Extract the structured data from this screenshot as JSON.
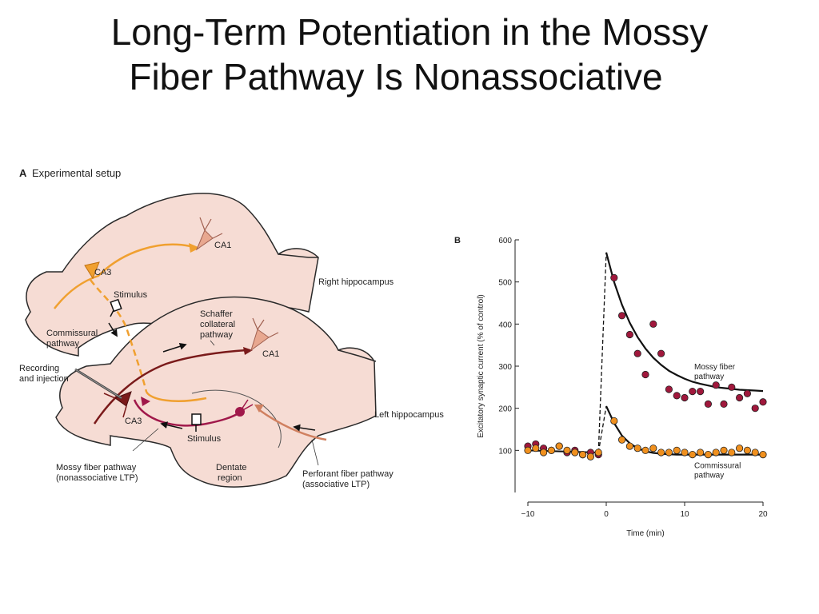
{
  "slide": {
    "title_line_1": "Long-Term Potentiation in the Mossy",
    "title_line_2": "Fiber Pathway Is Nonassociative"
  },
  "panel_a": {
    "letter": "A",
    "heading": "Experimental setup",
    "labels": {
      "ca1_right": "CA1",
      "ca3_right": "CA3",
      "stimulus_top": "Stimulus",
      "right_hippocampus": "Right hippocampus",
      "commissural_1": "Commissural",
      "commissural_2": "pathway",
      "schaffer_1": "Schaffer",
      "schaffer_2": "collateral",
      "schaffer_3": "pathway",
      "ca1_left": "CA1",
      "recording_1": "Recording",
      "recording_2": "and injection",
      "ca3_left": "CA3",
      "stimulus_bottom": "Stimulus",
      "left_hippocampus": "Left hippocampus",
      "mossy_1": "Mossy fiber pathway",
      "mossy_2": "(nonassociative LTP)",
      "dentate_1": "Dentate",
      "dentate_2": "region",
      "perforant_1": "Perforant fiber pathway",
      "perforant_2": "(associative LTP)"
    },
    "colors": {
      "tissue": "#f6dcd4",
      "outline": "#2a2a2a",
      "commissural": "#f0a030",
      "schaffer": "#7a1a1a",
      "mossy": "#a0184a",
      "perforant": "#d08060",
      "neuron_ca1": "#e8a890"
    }
  },
  "chart_data": {
    "type": "scatter",
    "panel_letter": "B",
    "xlabel": "Time (min)",
    "ylabel": "Excitatory synaptic current (% of control)",
    "xlim": [
      -10,
      20
    ],
    "ylim": [
      0,
      600
    ],
    "x_ticks": [
      -10,
      0,
      10,
      20
    ],
    "x_tick_labels": [
      "−10",
      "0",
      "10",
      "20"
    ],
    "y_ticks": [
      100,
      200,
      300,
      400,
      500,
      600
    ],
    "series": [
      {
        "name": "Mossy fiber pathway",
        "label_line_1": "Mossy fiber",
        "label_line_2": "pathway",
        "color": "#a0183c",
        "x": [
          -10,
          -9,
          -8,
          -7,
          -6,
          -5,
          -4,
          -3,
          -2,
          -1,
          1,
          2,
          3,
          4,
          5,
          6,
          7,
          8,
          9,
          10,
          11,
          12,
          13,
          14,
          15,
          16,
          17,
          18,
          19,
          20
        ],
        "y": [
          110,
          115,
          105,
          100,
          110,
          95,
          100,
          90,
          95,
          90,
          510,
          420,
          375,
          330,
          280,
          400,
          330,
          245,
          230,
          225,
          240,
          240,
          210,
          255,
          210,
          250,
          225,
          235,
          200,
          215
        ],
        "fit_x": [
          0,
          1,
          2,
          3,
          4,
          5,
          6,
          7,
          8,
          9,
          10,
          11,
          12,
          13,
          14,
          15,
          16,
          17,
          18,
          19,
          20
        ],
        "fit_y": [
          570,
          500,
          446,
          403,
          369,
          342,
          320,
          303,
          289,
          279,
          270,
          263,
          258,
          254,
          250,
          248,
          246,
          244,
          243,
          242,
          241
        ]
      },
      {
        "name": "Commissural pathway",
        "label_line_1": "Commissural",
        "label_line_2": "pathway",
        "color": "#f0901e",
        "x": [
          -10,
          -9,
          -8,
          -7,
          -6,
          -5,
          -4,
          -3,
          -2,
          -1,
          1,
          2,
          3,
          4,
          5,
          6,
          7,
          8,
          9,
          10,
          11,
          12,
          13,
          14,
          15,
          16,
          17,
          18,
          19,
          20
        ],
        "y": [
          100,
          105,
          95,
          100,
          110,
          100,
          95,
          90,
          85,
          95,
          170,
          125,
          110,
          105,
          100,
          105,
          95,
          95,
          100,
          95,
          90,
          95,
          90,
          95,
          100,
          95,
          105,
          100,
          95,
          90
        ],
        "fit_x": [
          0,
          1,
          2,
          3,
          4,
          5,
          6,
          7,
          8,
          9,
          10,
          11,
          12,
          13,
          14,
          15,
          16,
          17,
          18,
          19,
          20
        ],
        "fit_y": [
          205,
          165,
          135,
          117,
          105,
          98,
          94,
          92,
          91,
          90,
          90,
          90,
          90,
          90,
          90,
          90,
          90,
          90,
          90,
          90,
          90
        ]
      }
    ],
    "baseline_fit": {
      "x": [
        -10,
        -1
      ],
      "y": [
        100,
        95
      ]
    }
  }
}
